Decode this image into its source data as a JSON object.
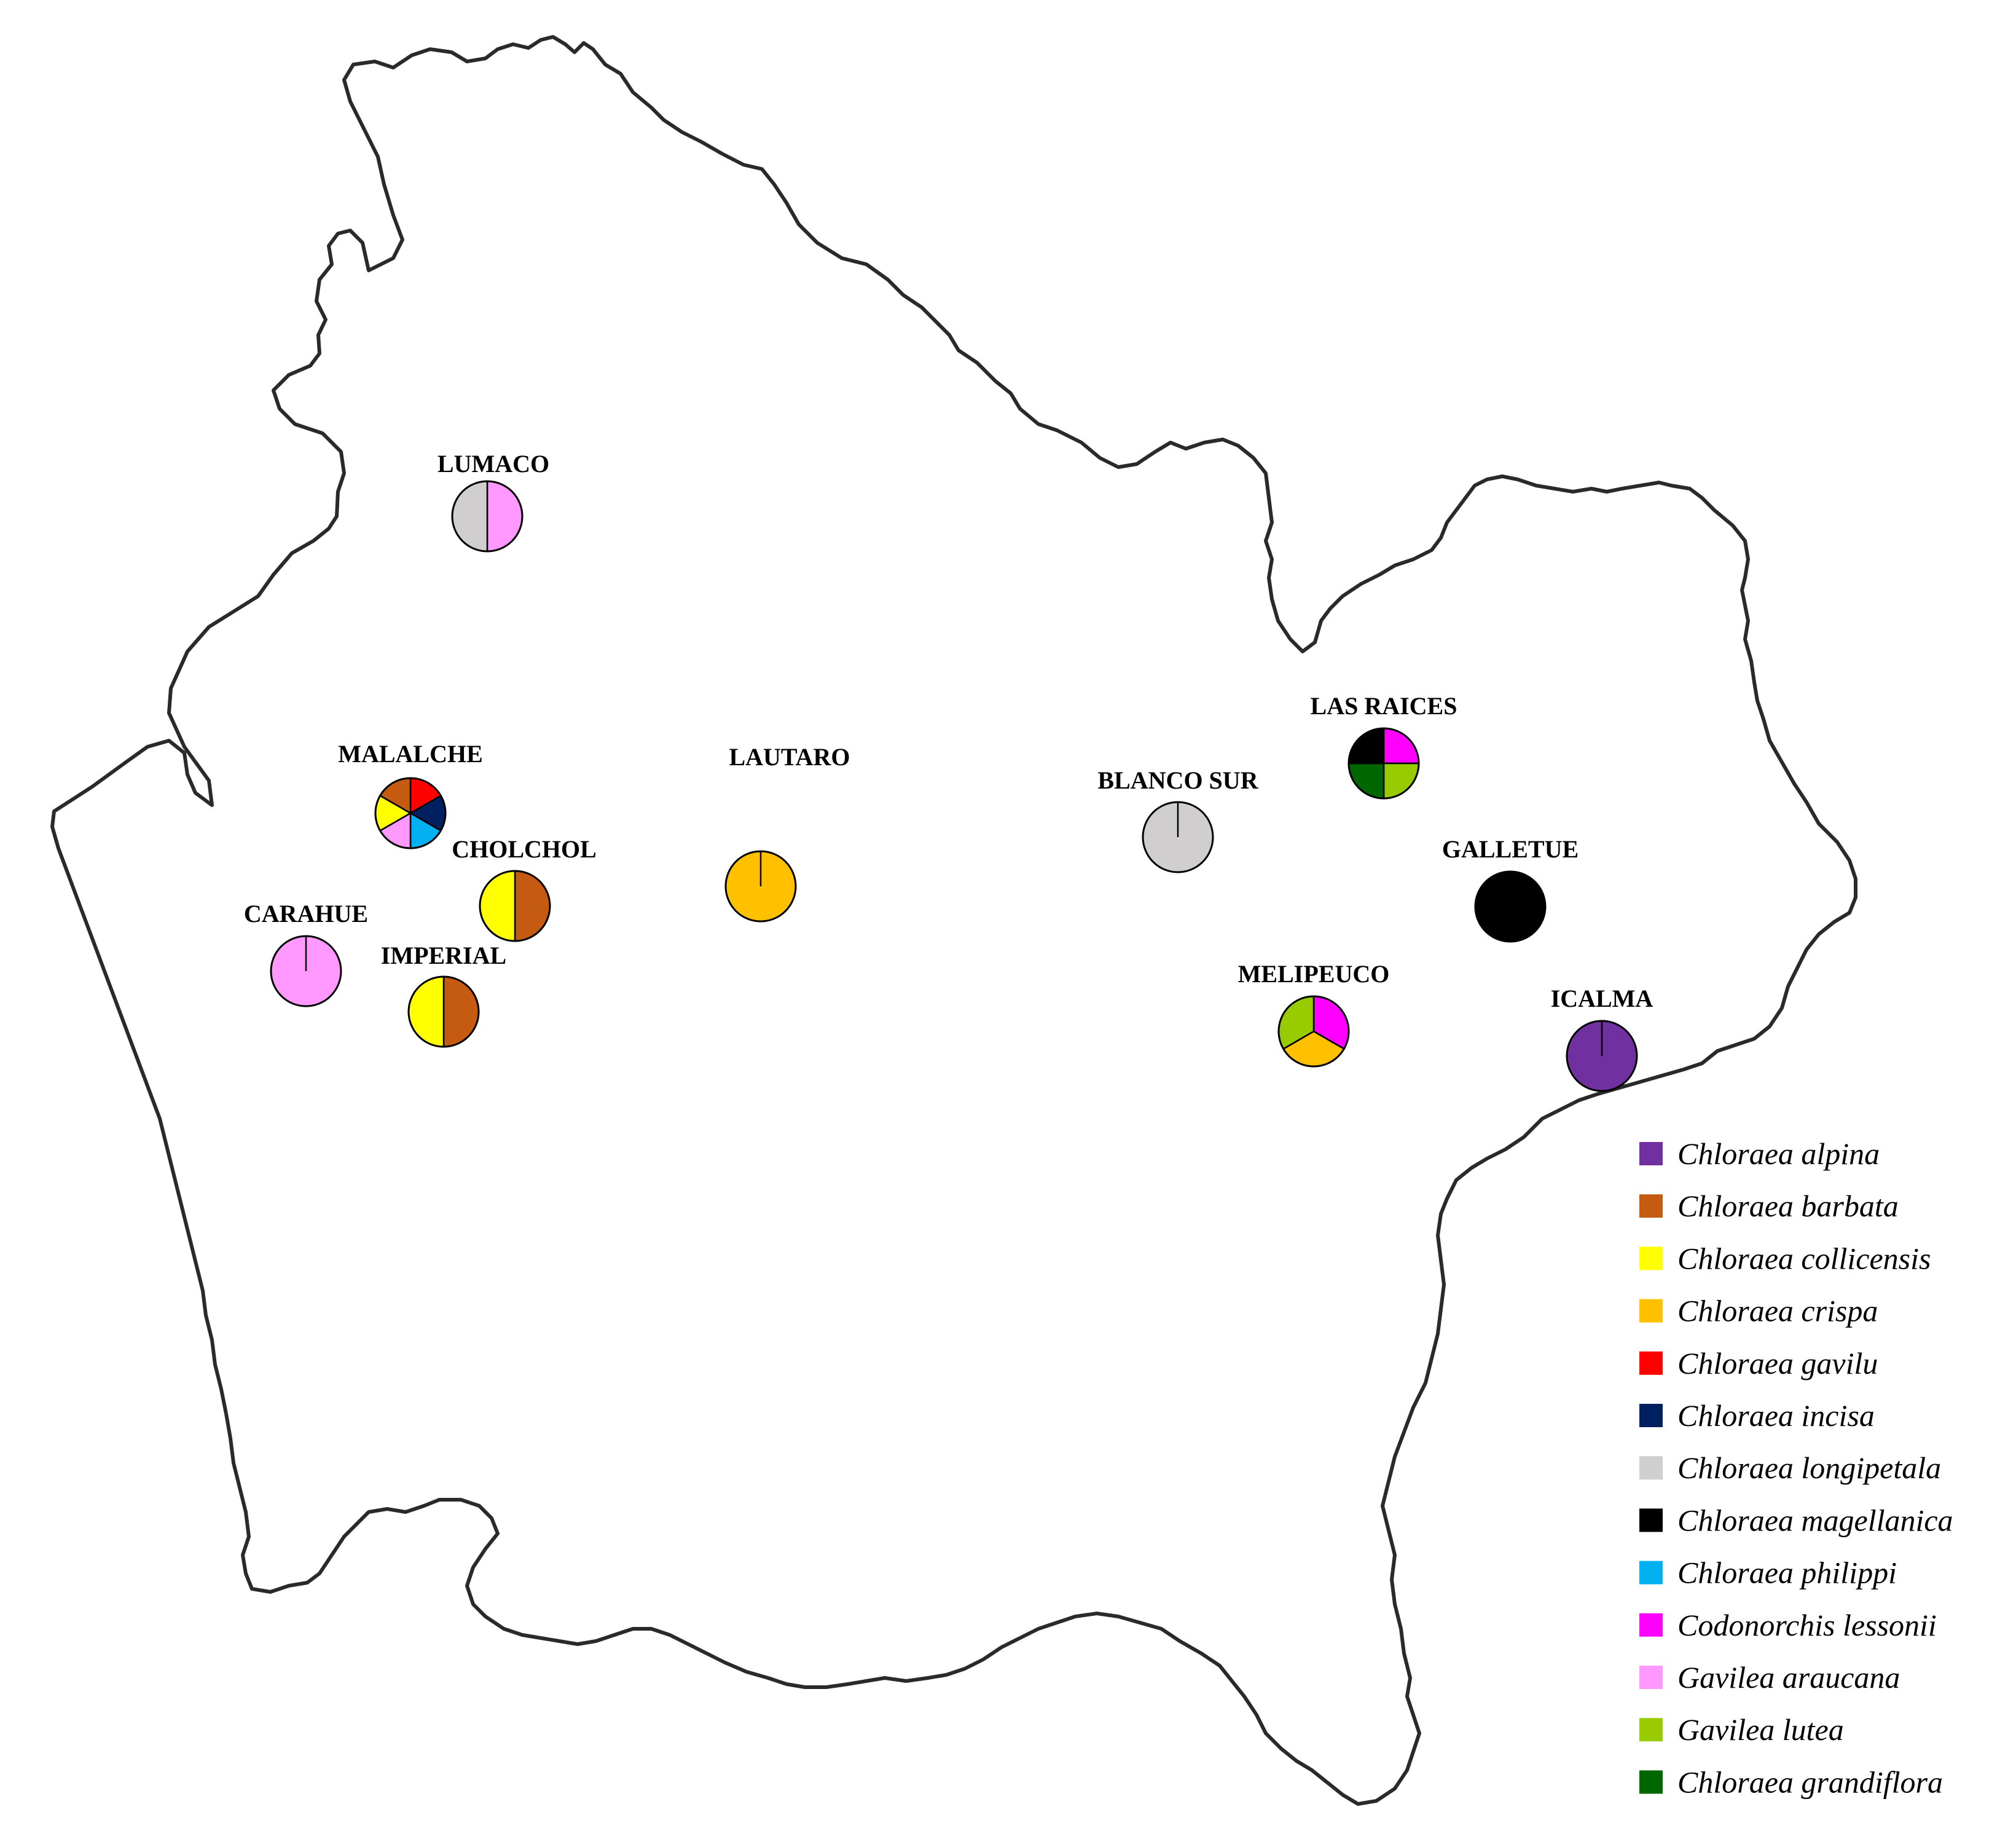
{
  "species": [
    {
      "key": "alpina",
      "name": "Chloraea alpina",
      "color": "#7030A0"
    },
    {
      "key": "barbata",
      "name": "Chloraea barbata",
      "color": "#C55A11"
    },
    {
      "key": "collicensis",
      "name": "Chloraea collicensis",
      "color": "#FFFF00"
    },
    {
      "key": "crispa",
      "name": "Chloraea crispa",
      "color": "#FFC000"
    },
    {
      "key": "gavilu",
      "name": "Chloraea gavilu",
      "color": "#FF0000"
    },
    {
      "key": "incisa",
      "name": "Chloraea incisa",
      "color": "#002060"
    },
    {
      "key": "longipetala",
      "name": "Chloraea longipetala",
      "color": "#D0CECE"
    },
    {
      "key": "magellanica",
      "name": "Chloraea magellanica",
      "color": "#000000"
    },
    {
      "key": "philippi",
      "name": "Chloraea philippi",
      "color": "#00B0F0"
    },
    {
      "key": "lessonii",
      "name": "Codonorchis lessonii",
      "color": "#FF00FF"
    },
    {
      "key": "araucana",
      "name": "Gavilea araucana",
      "color": "#FF99FF"
    },
    {
      "key": "lutea",
      "name": "Gavilea lutea",
      "color": "#99CC00"
    },
    {
      "key": "grandiflora",
      "name": "Chloraea grandiflora",
      "color": "#006600"
    }
  ],
  "sites": [
    {
      "name": "LUMACO",
      "species": [
        "araucana",
        "longipetala"
      ]
    },
    {
      "name": "MALALCHE",
      "species": [
        "gavilu",
        "incisa",
        "philippi",
        "araucana",
        "collicensis",
        "barbata"
      ]
    },
    {
      "name": "CHOLCHOL",
      "species": [
        "barbata",
        "collicensis"
      ]
    },
    {
      "name": "CARAHUE",
      "species": [
        "araucana"
      ]
    },
    {
      "name": "IMPERIAL",
      "species": [
        "barbata",
        "collicensis"
      ]
    },
    {
      "name": "LAUTARO",
      "species": [
        "crispa"
      ]
    },
    {
      "name": "BLANCO SUR",
      "species": [
        "longipetala"
      ]
    },
    {
      "name": "LAS RAICES",
      "species": [
        "lessonii",
        "lutea",
        "grandiflora",
        "magellanica"
      ]
    },
    {
      "name": "GALLETUE",
      "species": [
        "magellanica"
      ]
    },
    {
      "name": "MELIPEUCO",
      "species": [
        "lessonii",
        "crispa",
        "lutea"
      ]
    },
    {
      "name": "ICALMA",
      "species": [
        "alpina"
      ]
    }
  ]
}
